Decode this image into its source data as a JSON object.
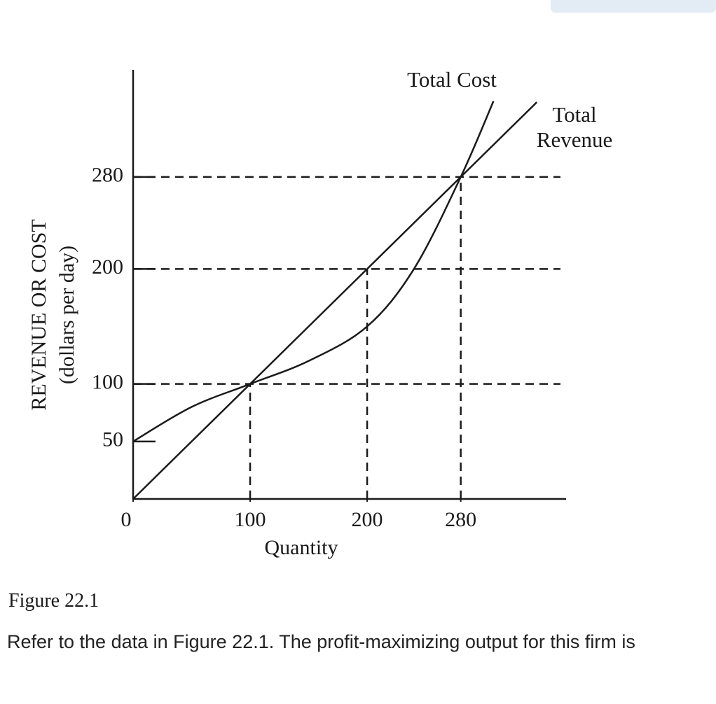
{
  "chart_data": {
    "type": "line",
    "xlabel": "Quantity",
    "ylabel": [
      "REVENUE OR COST",
      "(dollars per day)"
    ],
    "xlim": [
      0,
      370
    ],
    "ylim": [
      0,
      373
    ],
    "xticks": [
      0,
      100,
      200,
      280
    ],
    "yticks": [
      50,
      100,
      200,
      280
    ],
    "reference_points": {
      "x": [
        100,
        200,
        280
      ],
      "y": [
        100,
        200,
        280
      ]
    },
    "series": [
      {
        "name": "Total Cost",
        "color": "#1a1a1a",
        "x": [
          0,
          50,
          100,
          150,
          200,
          240,
          280,
          308
        ],
        "values": [
          50,
          80,
          100,
          120,
          150,
          200,
          280,
          346
        ]
      },
      {
        "name": "Total Revenue",
        "color": "#1a1a1a",
        "x": [
          0,
          345
        ],
        "values": [
          0,
          345
        ]
      }
    ]
  },
  "figure_caption": "Figure 22.1",
  "question": "Refer to the data in Figure 22.1. The profit-maximizing output for this firm is"
}
